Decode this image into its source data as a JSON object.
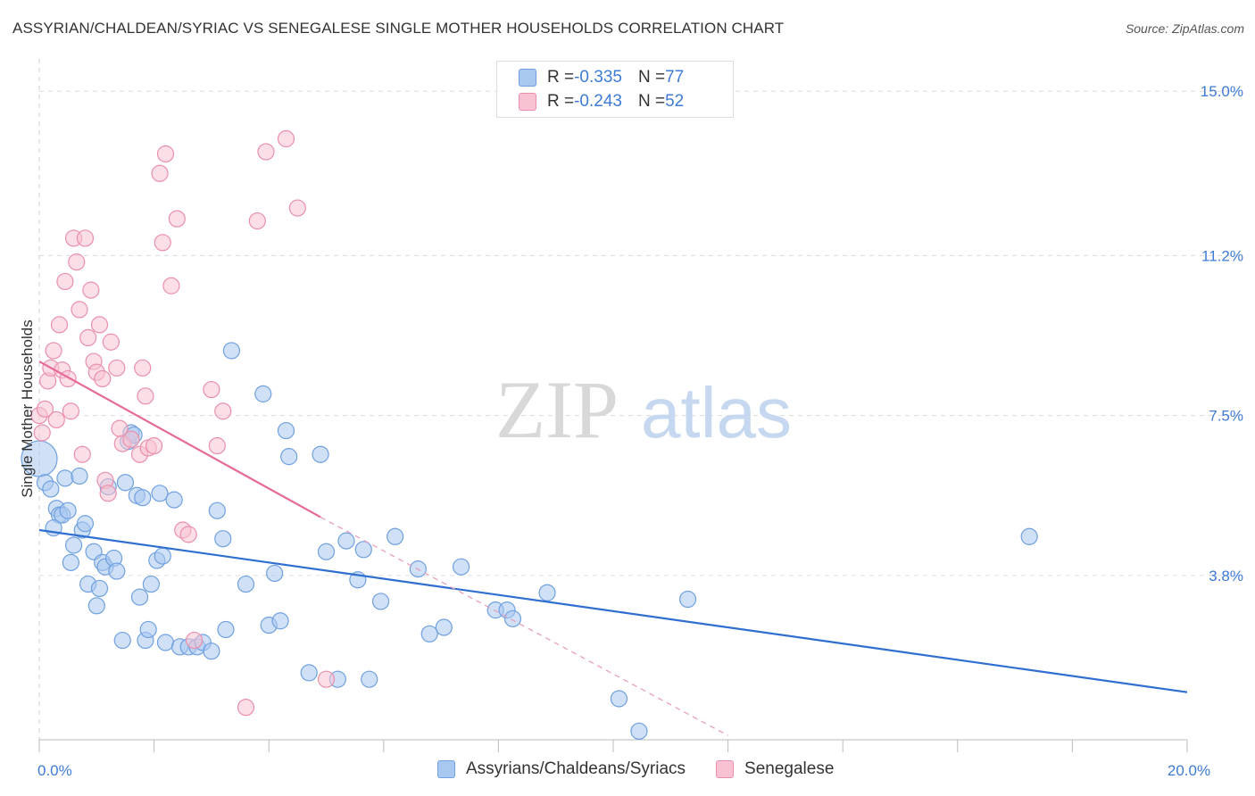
{
  "title": "ASSYRIAN/CHALDEAN/SYRIAC VS SENEGALESE SINGLE MOTHER HOUSEHOLDS CORRELATION CHART",
  "source": "Source: ZipAtlas.com",
  "watermark": {
    "zip": "ZIP",
    "atlas": "atlas"
  },
  "legend": {
    "rows": [
      {
        "r_label": "R = ",
        "r_value": "-0.335",
        "n_label": "N = ",
        "n_value": "77",
        "color": "#a9c8f0",
        "border": "#6fa0e0"
      },
      {
        "r_label": "R = ",
        "r_value": "-0.243",
        "n_label": "N = ",
        "n_value": "52",
        "color": "#f8c2d2",
        "border": "#ea8fab"
      }
    ]
  },
  "bottom_legend": [
    {
      "label": "Assyrians/Chaldeans/Syriacs",
      "color": "#a9c8f0",
      "border": "#6fa0e0"
    },
    {
      "label": "Senegalese",
      "color": "#f8c2d2",
      "border": "#ea8fab"
    }
  ],
  "chart_data": {
    "type": "scatter",
    "title": "ASSYRIAN/CHALDEAN/SYRIAC VS SENEGALESE SINGLE MOTHER HOUSEHOLDS CORRELATION CHART",
    "xlabel": "",
    "ylabel": "Single Mother Households",
    "xlim": [
      0,
      20
    ],
    "ylim": [
      0,
      15.5
    ],
    "x_tick_labels": [
      {
        "value": 0,
        "label": "0.0%"
      },
      {
        "value": 20,
        "label": "20.0%"
      }
    ],
    "y_tick_labels": [
      {
        "value": 3.8,
        "label": "3.8%"
      },
      {
        "value": 7.5,
        "label": "7.5%"
      },
      {
        "value": 11.2,
        "label": "11.2%"
      },
      {
        "value": 15.0,
        "label": "15.0%"
      }
    ],
    "grid": true,
    "series": [
      {
        "name": "Assyrians/Chaldeans/Syriacs",
        "color": "#6fa0e0",
        "fill": "#a9c8f0",
        "trend": {
          "x0": 0.0,
          "y0": 4.85,
          "x1": 20.0,
          "y1": 1.1,
          "color": "#2f6fd0"
        },
        "points": [
          [
            0.0,
            6.5
          ],
          [
            0.1,
            5.95
          ],
          [
            0.2,
            5.8
          ],
          [
            0.3,
            5.35
          ],
          [
            0.35,
            5.2
          ],
          [
            0.4,
            5.2
          ],
          [
            0.45,
            6.05
          ],
          [
            0.5,
            5.3
          ],
          [
            0.55,
            4.1
          ],
          [
            0.6,
            4.5
          ],
          [
            0.7,
            6.1
          ],
          [
            0.75,
            4.85
          ],
          [
            0.8,
            5.0
          ],
          [
            0.85,
            3.6
          ],
          [
            0.95,
            4.35
          ],
          [
            1.0,
            3.1
          ],
          [
            1.05,
            3.5
          ],
          [
            1.1,
            4.1
          ],
          [
            1.15,
            4.0
          ],
          [
            1.2,
            5.85
          ],
          [
            1.3,
            4.2
          ],
          [
            1.35,
            3.9
          ],
          [
            1.45,
            2.3
          ],
          [
            1.5,
            5.95
          ],
          [
            1.55,
            6.9
          ],
          [
            1.6,
            7.1
          ],
          [
            1.65,
            7.05
          ],
          [
            1.7,
            5.65
          ],
          [
            1.75,
            3.3
          ],
          [
            1.8,
            5.6
          ],
          [
            1.85,
            2.3
          ],
          [
            1.9,
            2.55
          ],
          [
            1.95,
            3.6
          ],
          [
            2.05,
            4.15
          ],
          [
            2.1,
            5.7
          ],
          [
            2.15,
            4.25
          ],
          [
            2.2,
            2.25
          ],
          [
            2.35,
            5.55
          ],
          [
            2.45,
            2.15
          ],
          [
            2.6,
            2.15
          ],
          [
            2.75,
            2.15
          ],
          [
            2.85,
            2.25
          ],
          [
            3.0,
            2.05
          ],
          [
            3.1,
            5.3
          ],
          [
            3.2,
            4.65
          ],
          [
            3.25,
            2.55
          ],
          [
            3.35,
            9.0
          ],
          [
            3.6,
            3.6
          ],
          [
            3.9,
            8.0
          ],
          [
            4.0,
            2.65
          ],
          [
            4.1,
            3.85
          ],
          [
            4.2,
            2.75
          ],
          [
            4.3,
            7.15
          ],
          [
            4.35,
            6.55
          ],
          [
            4.7,
            1.55
          ],
          [
            4.9,
            6.6
          ],
          [
            5.0,
            4.35
          ],
          [
            5.2,
            1.4
          ],
          [
            5.35,
            4.6
          ],
          [
            5.55,
            3.7
          ],
          [
            5.65,
            4.4
          ],
          [
            5.75,
            1.4
          ],
          [
            5.95,
            3.2
          ],
          [
            6.2,
            4.7
          ],
          [
            6.6,
            3.95
          ],
          [
            6.8,
            2.45
          ],
          [
            7.05,
            2.6
          ],
          [
            7.35,
            4.0
          ],
          [
            7.95,
            3.0
          ],
          [
            8.15,
            3.0
          ],
          [
            8.25,
            2.8
          ],
          [
            8.85,
            3.4
          ],
          [
            10.1,
            0.95
          ],
          [
            10.45,
            0.2
          ],
          [
            11.3,
            3.25
          ],
          [
            17.25,
            4.7
          ],
          [
            0.25,
            4.9
          ]
        ]
      },
      {
        "name": "Senegalese",
        "color": "#ea8fab",
        "fill": "#f8c2d2",
        "trend": {
          "x0": 0.0,
          "y0": 8.75,
          "x1": 4.9,
          "y1": 5.15,
          "color": "#e66a96"
        },
        "trend_ext": {
          "x0": 4.9,
          "y0": 5.15,
          "x1": 12.0,
          "y1": 0.1,
          "color": "#e6a0b8"
        },
        "points": [
          [
            0.0,
            7.5
          ],
          [
            0.05,
            7.1
          ],
          [
            0.1,
            7.65
          ],
          [
            0.15,
            8.3
          ],
          [
            0.2,
            8.6
          ],
          [
            0.25,
            9.0
          ],
          [
            0.3,
            7.4
          ],
          [
            0.35,
            9.6
          ],
          [
            0.4,
            8.55
          ],
          [
            0.45,
            10.6
          ],
          [
            0.5,
            8.35
          ],
          [
            0.55,
            7.6
          ],
          [
            0.6,
            11.6
          ],
          [
            0.65,
            11.05
          ],
          [
            0.7,
            9.95
          ],
          [
            0.75,
            6.6
          ],
          [
            0.8,
            11.6
          ],
          [
            0.85,
            9.3
          ],
          [
            0.9,
            10.4
          ],
          [
            0.95,
            8.75
          ],
          [
            1.0,
            8.5
          ],
          [
            1.05,
            9.6
          ],
          [
            1.1,
            8.35
          ],
          [
            1.15,
            6.0
          ],
          [
            1.2,
            5.7
          ],
          [
            1.25,
            9.2
          ],
          [
            1.35,
            8.6
          ],
          [
            1.4,
            7.2
          ],
          [
            1.45,
            6.85
          ],
          [
            1.6,
            6.95
          ],
          [
            1.75,
            6.6
          ],
          [
            1.8,
            8.6
          ],
          [
            1.85,
            7.95
          ],
          [
            1.9,
            6.75
          ],
          [
            2.0,
            6.8
          ],
          [
            2.1,
            13.1
          ],
          [
            2.15,
            11.5
          ],
          [
            2.2,
            13.55
          ],
          [
            2.3,
            10.5
          ],
          [
            2.4,
            12.05
          ],
          [
            2.5,
            4.85
          ],
          [
            2.6,
            4.75
          ],
          [
            2.7,
            2.3
          ],
          [
            3.0,
            8.1
          ],
          [
            3.1,
            6.8
          ],
          [
            3.2,
            7.6
          ],
          [
            3.6,
            0.75
          ],
          [
            3.8,
            12.0
          ],
          [
            3.95,
            13.6
          ],
          [
            4.3,
            13.9
          ],
          [
            4.5,
            12.3
          ],
          [
            5.0,
            1.4
          ]
        ]
      }
    ]
  }
}
